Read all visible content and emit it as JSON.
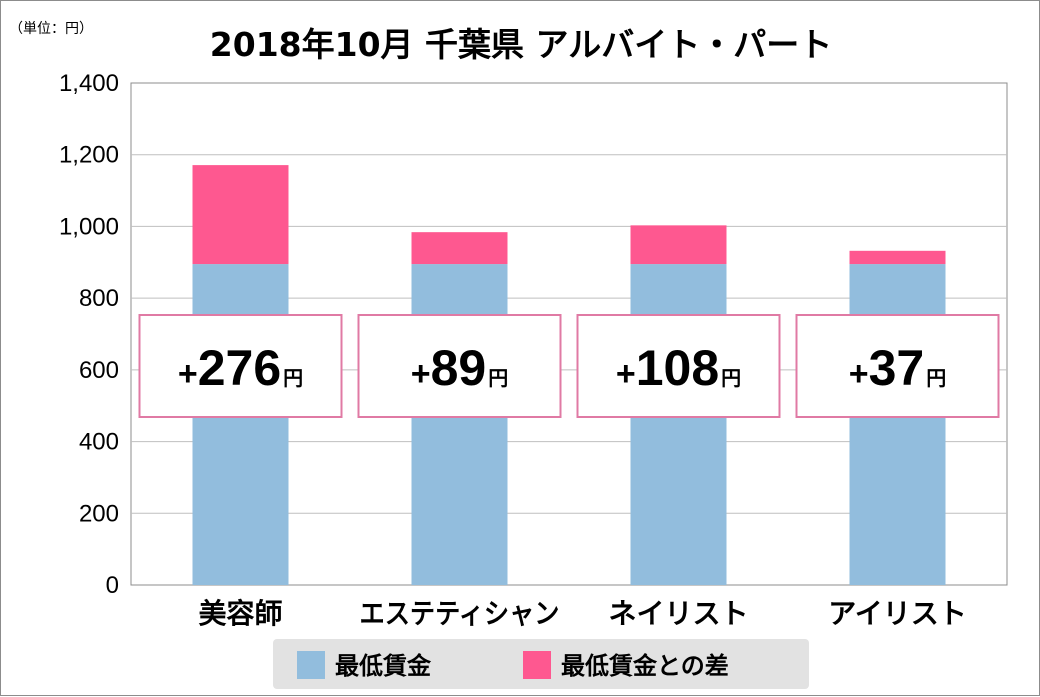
{
  "unit_label": "（単位：円）",
  "colors": {
    "min_wage": "#92BDDD",
    "difference": "#FE5890",
    "callout_border": "#E07AA4",
    "grid": "#BFBFBF",
    "legend_bg": "#E2E2E2"
  },
  "chart_data": {
    "type": "bar",
    "stacked": true,
    "title": "2018年10月 千葉県 アルバイト・パート",
    "categories": [
      "美容師",
      "エステティシャン",
      "ネイリスト",
      "アイリスト"
    ],
    "series": [
      {
        "name": "最低賃金",
        "values": [
          895,
          895,
          895,
          895
        ]
      },
      {
        "name": "最低賃金との差",
        "values": [
          276,
          89,
          108,
          37
        ]
      }
    ],
    "callouts": [
      {
        "sign": "+",
        "value": "276",
        "unit": "円"
      },
      {
        "sign": "+",
        "value": "89",
        "unit": "円"
      },
      {
        "sign": "+",
        "value": "108",
        "unit": "円"
      },
      {
        "sign": "+",
        "value": "37",
        "unit": "円"
      }
    ],
    "ylim": [
      0,
      1400
    ],
    "yticks": [
      "0",
      "200",
      "400",
      "600",
      "800",
      "1,000",
      "1,200",
      "1,400"
    ],
    "ytick_values": [
      0,
      200,
      400,
      600,
      800,
      1000,
      1200,
      1400
    ],
    "grid": true,
    "legend_position": "bottom"
  }
}
